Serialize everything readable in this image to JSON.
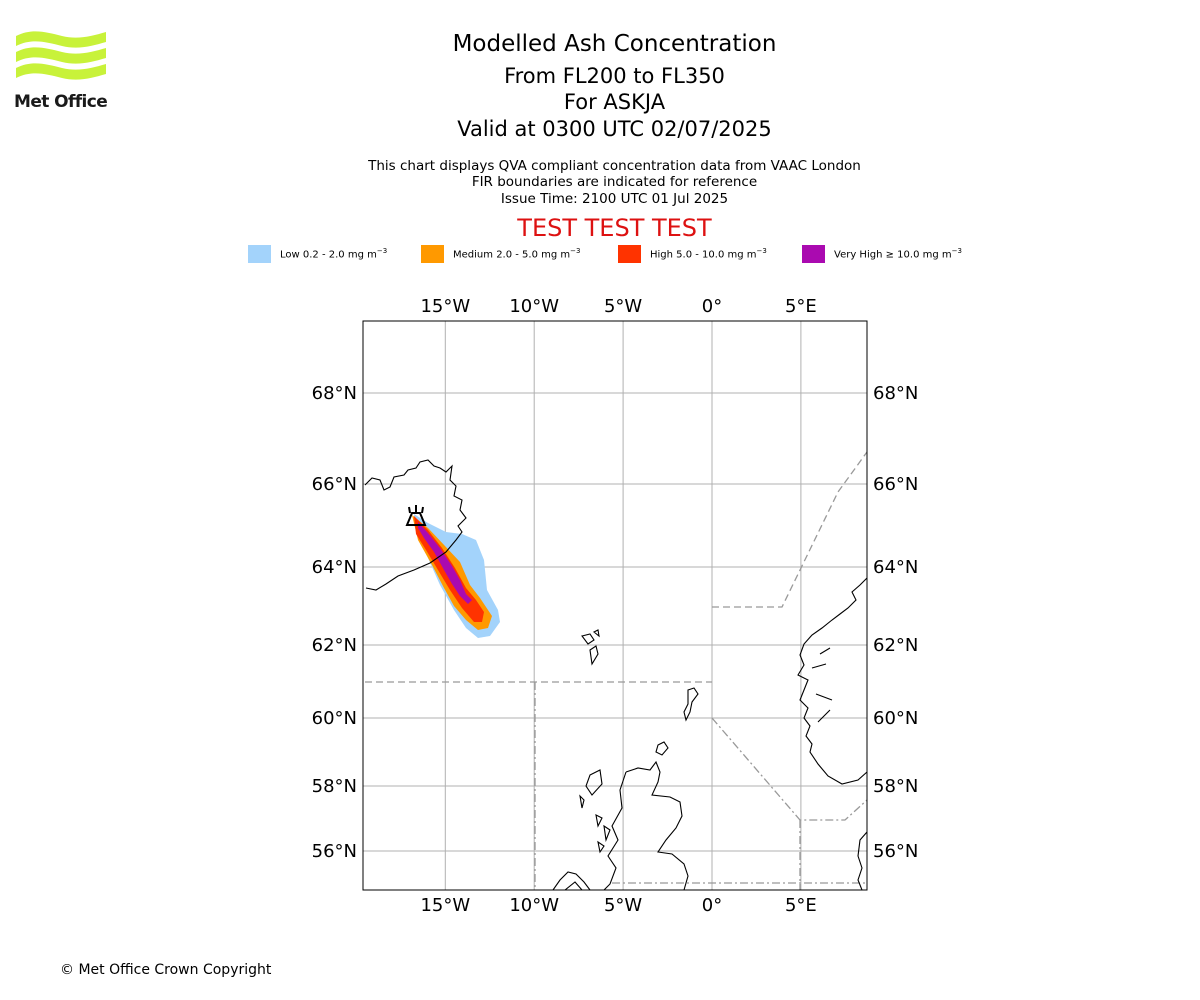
{
  "logo": {
    "text": "Met Office",
    "color": "#c8f23a"
  },
  "header": {
    "title": "Modelled Ash Concentration",
    "levels": "From FL200 to FL350",
    "volcano": "For ASKJA",
    "valid": "Valid at 0300 UTC 02/07/2025",
    "note1": "This chart displays QVA compliant concentration data from VAAC London",
    "note2": "FIR boundaries are indicated for reference",
    "issue": "Issue Time: 2100 UTC 01 Jul 2025",
    "test_banner": "TEST TEST TEST"
  },
  "legend": [
    {
      "level": "Low",
      "range": "0.2 - 2.0",
      "unit": "mg m",
      "exp": "−3",
      "color": "#a3d3fb"
    },
    {
      "level": "Medium",
      "range": "2.0 - 5.0",
      "unit": "mg m",
      "exp": "−3",
      "color": "#ff9900"
    },
    {
      "level": "High",
      "range": "5.0 - 10.0",
      "unit": "mg m",
      "exp": "−3",
      "color": "#ff3300"
    },
    {
      "level": "Very High",
      "range": "≥  10.0",
      "unit": "mg m",
      "exp": "−3",
      "color": "#aa0ab0"
    }
  ],
  "map": {
    "extent": {
      "lon": [
        -19.5,
        8.5
      ],
      "lat": [
        55,
        69.7
      ]
    },
    "lon_ticks": [
      {
        "value": -15,
        "label": "15°W"
      },
      {
        "value": -10,
        "label": "10°W"
      },
      {
        "value": -5,
        "label": "5°W"
      },
      {
        "value": 0,
        "label": "0°"
      },
      {
        "value": 5,
        "label": "5°E"
      }
    ],
    "lat_ticks": [
      {
        "value": 56,
        "label": "56°N"
      },
      {
        "value": 58,
        "label": "58°N"
      },
      {
        "value": 60,
        "label": "60°N"
      },
      {
        "value": 62,
        "label": "62°N"
      },
      {
        "value": 64,
        "label": "64°N"
      },
      {
        "value": 66,
        "label": "66°N"
      },
      {
        "value": 68,
        "label": "68°N"
      }
    ],
    "volcano_location": {
      "lon": -16.7,
      "lat": 65.0
    }
  },
  "footer": {
    "copyright": "© Met Office Crown Copyright"
  }
}
